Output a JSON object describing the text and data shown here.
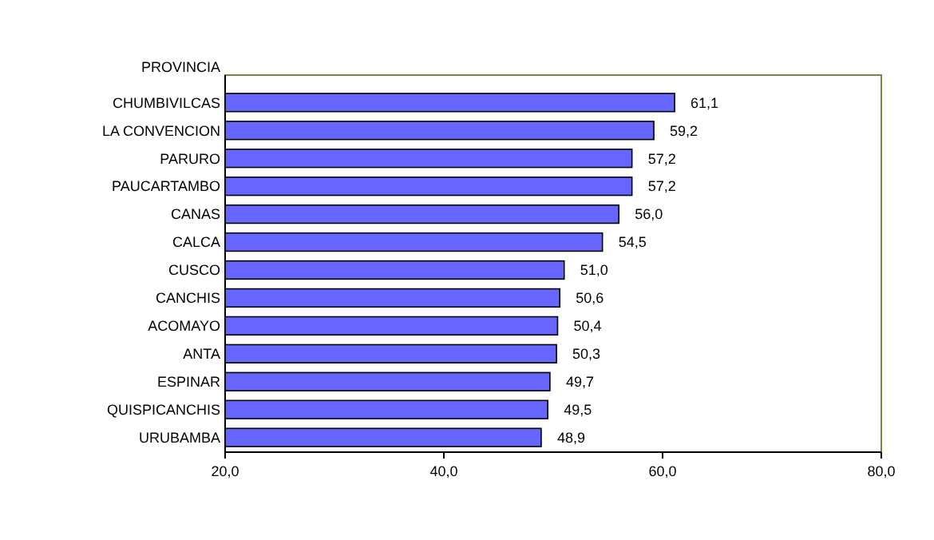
{
  "chart_data": {
    "type": "bar",
    "orientation": "horizontal",
    "ylabel": "PROVINCIA",
    "categories": [
      "CHUMBIVILCAS",
      "LA CONVENCION",
      "PARURO",
      "PAUCARTAMBO",
      "CANAS",
      "CALCA",
      "CUSCO",
      "CANCHIS",
      "ACOMAYO",
      "ANTA",
      "ESPINAR",
      "QUISPICANCHIS",
      "URUBAMBA"
    ],
    "values": [
      61.1,
      59.2,
      57.2,
      57.2,
      56.0,
      54.5,
      51.0,
      50.6,
      50.4,
      50.3,
      49.7,
      49.5,
      48.9
    ],
    "value_labels": [
      "61,1",
      "59,2",
      "57,2",
      "57,2",
      "56,0",
      "54,5",
      "51,0",
      "50,6",
      "50,4",
      "50,3",
      "49,7",
      "49,5",
      "48,9"
    ],
    "color": "#6666ff",
    "xlim": [
      20,
      80
    ],
    "xticks": [
      {
        "value": 20,
        "label": "20,0"
      },
      {
        "value": 40,
        "label": "40,0"
      },
      {
        "value": 60,
        "label": "60,0"
      },
      {
        "value": 80,
        "label": "80,0"
      }
    ]
  }
}
